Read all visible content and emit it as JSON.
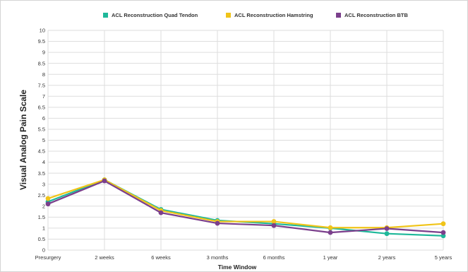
{
  "chart_data": {
    "type": "line",
    "title": "",
    "xlabel": "Time Window",
    "ylabel": "Visual Analog Pain Scale",
    "categories": [
      "Presurgery",
      "2 weeks",
      "6 weeks",
      "3 months",
      "6 months",
      "1 year",
      "2 years",
      "5 years"
    ],
    "ylim": [
      0,
      10
    ],
    "yticks": [
      "0",
      "0.5",
      "1",
      "1.5",
      "2",
      "2.5",
      "3",
      "3.5",
      "4",
      "4.5",
      "5",
      "5.5",
      "6",
      "6.5",
      "7",
      "7.5",
      "8",
      "8.5",
      "9",
      "9.5",
      "10"
    ],
    "grid": true,
    "legend_position": "top",
    "series": [
      {
        "name": "ACL Reconstruction Quad Tendon",
        "color": "#1fb89a",
        "values": [
          2.2,
          3.2,
          1.85,
          1.35,
          1.2,
          1.0,
          0.75,
          0.65
        ]
      },
      {
        "name": "ACL Reconstruction Hamstring",
        "color": "#f0c419",
        "values": [
          2.35,
          3.2,
          1.8,
          1.3,
          1.3,
          1.02,
          1.02,
          1.2
        ]
      },
      {
        "name": "ACL Reconstruction BTB",
        "color": "#7b3f8c",
        "values": [
          2.1,
          3.15,
          1.7,
          1.22,
          1.12,
          0.8,
          0.98,
          0.8
        ]
      }
    ]
  }
}
